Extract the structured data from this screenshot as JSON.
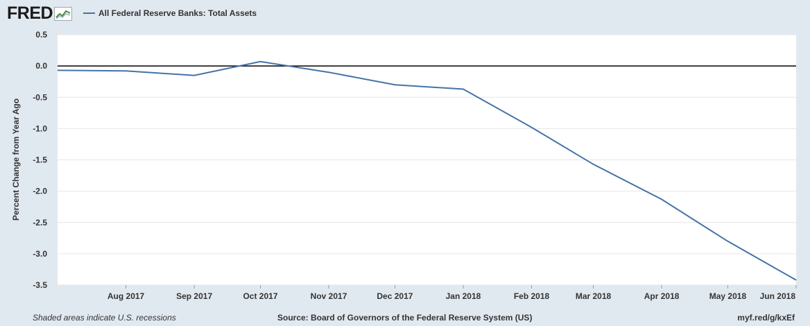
{
  "header": {
    "logo_text": "FRED",
    "series_label": "All Federal Reserve Banks: Total Assets"
  },
  "colors": {
    "background": "#e1e9f0",
    "plot_background": "#ffffff",
    "series": "#4572a7",
    "zero_line": "#000000",
    "grid": "#e6e6e6"
  },
  "footer": {
    "note": "Shaded areas indicate U.S. recessions",
    "source": "Source: Board of Governors of the Federal Reserve System (US)",
    "url": "myf.red/g/kxEf"
  },
  "chart_data": {
    "type": "line",
    "title": "",
    "xlabel": "",
    "ylabel": "Percent Change from Year Ago",
    "ylim": [
      -3.5,
      0.5
    ],
    "yticks": [
      "0.5",
      "0.0",
      "-0.5",
      "-1.0",
      "-1.5",
      "-2.0",
      "-2.5",
      "-3.0",
      "-3.5"
    ],
    "xtick_labels": [
      "Aug 2017",
      "Sep 2017",
      "Oct 2017",
      "Nov 2017",
      "Dec 2017",
      "Jan 2018",
      "Feb 2018",
      "Mar 2018",
      "Apr 2018",
      "May 2018",
      "Jun 2018"
    ],
    "grid": true,
    "legend": "top-left",
    "series": [
      {
        "name": "All Federal Reserve Banks: Total Assets",
        "x": [
          "2017-07-01",
          "2017-08-01",
          "2017-09-01",
          "2017-10-01",
          "2017-11-01",
          "2017-12-01",
          "2018-01-01",
          "2018-02-01",
          "2018-03-01",
          "2018-04-01",
          "2018-05-01",
          "2018-06-01"
        ],
        "values": [
          -0.07,
          -0.08,
          -0.15,
          0.07,
          -0.1,
          -0.3,
          -0.37,
          -0.98,
          -1.57,
          -2.13,
          -2.8,
          -3.42
        ]
      }
    ]
  }
}
